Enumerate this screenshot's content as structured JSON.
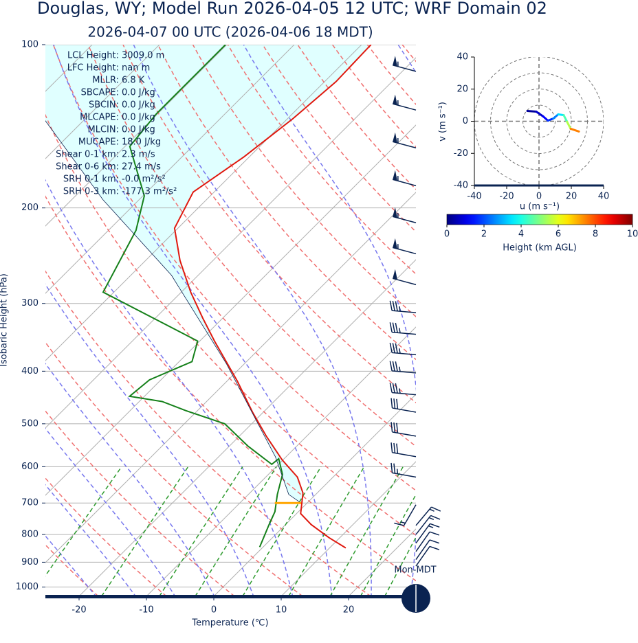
{
  "chart_data": [
    {
      "type": "skewt",
      "title": "Douglas, WY; Model Run 2026-04-05 12 UTC; WRF Domain 02",
      "subtitle": "2026-04-07 00 UTC  (2026-04-06 18 MDT)",
      "xlabel": "Temperature (℃)",
      "ylabel": "Isobaric Height (hPa)",
      "xlim": [
        -25,
        30
      ],
      "ylim": [
        1040,
        100
      ],
      "xticks": [
        -20,
        -10,
        0,
        10,
        20
      ],
      "yticks": [
        100,
        200,
        300,
        400,
        500,
        600,
        700,
        800,
        900,
        1000
      ],
      "log_y": true,
      "grid": true,
      "series": [
        {
          "color": "#e0190f",
          "pressure": [
            847,
            811,
            767,
            732,
            671,
            627,
            583,
            527,
            476,
            417,
            352,
            319,
            286,
            250,
            218,
            187,
            161,
            137,
            117,
            100
          ],
          "values": [
            12.4,
            8.4,
            3.8,
            0.6,
            -2.1,
            -5.3,
            -10.1,
            -16.0,
            -21.6,
            -28.5,
            -37.8,
            -43.0,
            -48.6,
            -54.9,
            -60.5,
            -63.1,
            -60.8,
            -59.2,
            -58.3,
            -58.6
          ]
        },
        {
          "color": "#15801a",
          "pressure": [
            844,
            769,
            726,
            675,
            620,
            580,
            594,
            550,
            500,
            473,
            455,
            445,
            415,
            384,
            352,
            286,
            220,
            190,
            154,
            134,
            100
          ],
          "values": [
            -0.5,
            -2.4,
            -3.5,
            -5.7,
            -7.9,
            -10.8,
            -11.0,
            -17.2,
            -24.0,
            -31.7,
            -36.6,
            -42.2,
            -41.7,
            -38.1,
            -40.3,
            -61.6,
            -65.9,
            -69.8,
            -79.3,
            -80.2,
            -80.2
          ]
        },
        {
          "color": "#0a2351",
          "pressure": [
            700,
            675,
            575,
            388,
            266,
            193,
            138
          ],
          "values": [
            -0.9,
            -4.0,
            -11.6,
            -32.6,
            -54.0,
            -75.4,
            -95.7
          ]
        }
      ],
      "lcl": {
        "color": "#ffa500",
        "pressure": 700,
        "values": [
          -4.8,
          -0.9
        ]
      },
      "stats": [
        {
          "label": "LCL Height:",
          "value": "3009.0 m"
        },
        {
          "label": "LFC Height:",
          "value": "nan m"
        },
        {
          "label": "MLLR:",
          "value": "6.8 K"
        },
        {
          "label": "SBCAPE:",
          "value": "0.0 J/kg"
        },
        {
          "label": "SBCIN:",
          "value": "0.0 J/kg"
        },
        {
          "label": "MLCAPE:",
          "value": "0.0 J/kg"
        },
        {
          "label": "MLCIN:",
          "value": "0.0 J/kg"
        },
        {
          "label": "MUCAPE:",
          "value": "18.0 J/kg"
        },
        {
          "label": "Shear 0-1 km:",
          "value": "2.3 m/s"
        },
        {
          "label": "Shear 0-6 km:",
          "value": "27.4 m/s"
        },
        {
          "label": "SRH 0-1 km:",
          "value": "-0.0 m²/s²"
        },
        {
          "label": "SRH 0-3 km:",
          "value": "-177.3 m²/s²"
        }
      ],
      "wind": {
        "color": "#0a2351",
        "pressure": [
          112,
          132,
          155,
          182,
          213,
          243,
          277,
          312,
          342,
          373,
          403,
          442,
          476,
          527,
          575,
          627,
          705,
          770,
          800,
          830,
          860,
          890,
          915
        ],
        "speed": [
          55,
          55,
          55,
          55,
          55,
          55,
          50,
          35,
          35,
          35,
          35,
          35,
          30,
          30,
          30,
          25,
          15,
          15,
          15,
          15,
          10,
          10,
          10
        ],
        "direction": [
          285,
          285,
          285,
          285,
          285,
          285,
          285,
          275,
          275,
          275,
          275,
          275,
          280,
          280,
          280,
          280,
          210,
          40,
          38,
          36,
          35,
          35,
          35
        ]
      },
      "time_label": "Mon-MDT"
    },
    {
      "type": "hodograph",
      "xlabel": "u (m s⁻¹)",
      "ylabel": "v (m s⁻¹)",
      "xlim": [
        -40,
        40
      ],
      "ylim": [
        -40,
        40
      ],
      "xticks": [
        -40,
        -20,
        0,
        20,
        40
      ],
      "yticks": [
        -40,
        -20,
        0,
        20,
        40
      ],
      "u": [
        -7.2,
        -1.7,
        2.6,
        5.5,
        8.9,
        11.9,
        15.3,
        17.4,
        19.6,
        24.7
      ],
      "v": [
        6.4,
        6.0,
        3.0,
        0.4,
        1.7,
        4.3,
        3.8,
        -0.4,
        -4.7,
        -6.4
      ],
      "height": [
        0,
        0.5,
        1,
        1.5,
        2,
        3,
        4,
        5,
        6,
        9
      ],
      "colorbar": {
        "label": "Height (km AGL)",
        "lim": [
          0,
          10
        ],
        "ticks": [
          0,
          2,
          4,
          6,
          8,
          10
        ]
      }
    }
  ]
}
